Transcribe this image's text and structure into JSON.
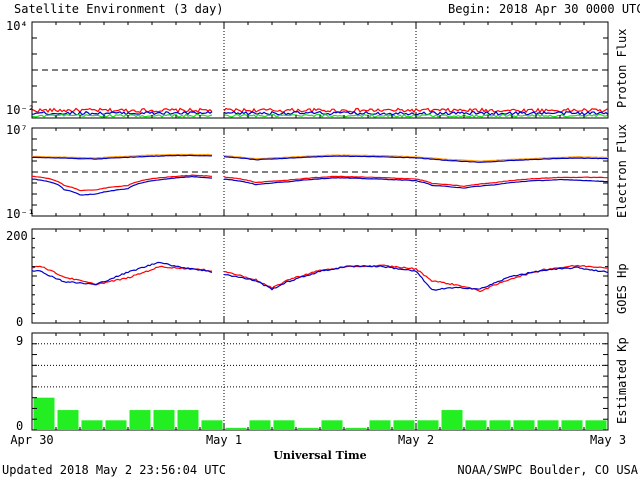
{
  "header": {
    "title": "Satellite Environment (3 day)",
    "begin_label": "Begin:",
    "begin_value": "2018 Apr 30 0000 UTC"
  },
  "footer": {
    "updated": "Updated 2018 May  2 23:56:04 UTC",
    "credit": "NOAA/SWPC Boulder, CO USA"
  },
  "x_axis": {
    "label": "Universal Time",
    "ticks": [
      "Apr 30",
      "May 1",
      "May 2",
      "May 3"
    ]
  },
  "colors": {
    "red": "#ff0000",
    "blue": "#0000cc",
    "green": "#22dd22",
    "orange": "#ff9900",
    "kp_bar": "#22ee22"
  },
  "chart_data": [
    {
      "type": "line",
      "panel": "proton",
      "ylabel": "Proton Flux",
      "yscale": "log",
      "ylim": [
        0.01,
        10000
      ],
      "ytick_labels": [
        "10⁴",
        "10⁻²"
      ],
      "reference_line": 10,
      "x_range_hours": [
        0,
        72
      ],
      "series": [
        {
          "color": "red",
          "level": 0.03,
          "noise": 0.12
        },
        {
          "color": "blue",
          "level": 0.02,
          "noise": 0.1
        },
        {
          "color": "green",
          "level": 0.014,
          "noise": 0.08
        }
      ]
    },
    {
      "type": "line",
      "panel": "electron",
      "ylabel": "Electron Flux",
      "yscale": "log",
      "ylim": [
        0.1,
        10000000
      ],
      "ytick_labels": [
        "10⁷",
        "10⁻¹"
      ],
      "reference_line": 1000,
      "x_range_hours": [
        0,
        72
      ],
      "series": [
        {
          "color": "orange",
          "x": [
            0,
            2,
            8,
            14,
            18,
            22,
            24,
            28,
            32,
            38,
            44,
            48,
            52,
            56,
            62,
            68,
            72
          ],
          "values": [
            26000,
            24000,
            19000,
            32000,
            40000,
            38000,
            30000,
            16000,
            22000,
            35000,
            30000,
            23000,
            14000,
            9500,
            16000,
            24000,
            21000
          ]
        },
        {
          "color": "blue",
          "x": [
            0,
            2,
            8,
            14,
            18,
            22,
            24,
            28,
            32,
            38,
            44,
            48,
            52,
            56,
            62,
            68,
            72
          ],
          "values": [
            22000,
            20000,
            15000,
            25000,
            32000,
            30000,
            24000,
            13000,
            18000,
            28000,
            24000,
            19000,
            11000,
            7500,
            13000,
            19000,
            16000
          ]
        },
        {
          "color": "red",
          "x": [
            0,
            2,
            4,
            6,
            8,
            12,
            16,
            20,
            24,
            28,
            32,
            38,
            44,
            48,
            50,
            54,
            58,
            62,
            66,
            70,
            72
          ],
          "values": [
            400,
            260,
            60,
            20,
            24,
            60,
            300,
            500,
            360,
            110,
            180,
            400,
            300,
            230,
            90,
            50,
            110,
            230,
            320,
            330,
            310
          ]
        },
        {
          "color": "blue",
          "x": [
            0,
            2,
            4,
            6,
            8,
            12,
            16,
            20,
            24,
            28,
            32,
            38,
            44,
            48,
            50,
            54,
            58,
            62,
            66,
            70,
            72
          ],
          "values": [
            230,
            140,
            25,
            8,
            10,
            30,
            200,
            380,
            230,
            70,
            130,
            300,
            220,
            160,
            60,
            35,
            70,
            150,
            200,
            160,
            130
          ]
        }
      ]
    },
    {
      "type": "line",
      "panel": "goes_hp",
      "ylabel": "GOES Hp",
      "ylim": [
        0,
        200
      ],
      "ytick_labels": [
        "200",
        "0"
      ],
      "x_range_hours": [
        0,
        72
      ],
      "series": [
        {
          "color": "red",
          "x": [
            0,
            1,
            4,
            8,
            12,
            16,
            20,
            22,
            24,
            28,
            30,
            32,
            36,
            40,
            44,
            48,
            50,
            54,
            56,
            60,
            64,
            68,
            72
          ],
          "values": [
            118,
            122,
            98,
            82,
            96,
            120,
            115,
            112,
            110,
            92,
            74,
            92,
            112,
            120,
            122,
            115,
            90,
            78,
            68,
            95,
            114,
            122,
            118
          ]
        },
        {
          "color": "blue",
          "x": [
            0,
            1,
            4,
            8,
            12,
            16,
            18,
            20,
            22,
            24,
            28,
            30,
            32,
            36,
            40,
            44,
            48,
            50,
            52,
            54,
            56,
            60,
            64,
            68,
            72
          ],
          "values": [
            112,
            110,
            88,
            82,
            108,
            130,
            120,
            116,
            110,
            104,
            90,
            72,
            88,
            110,
            122,
            120,
            110,
            70,
            74,
            75,
            72,
            100,
            112,
            118,
            108
          ]
        }
      ]
    },
    {
      "type": "bar",
      "panel": "kp",
      "ylabel": "Estimated Kp",
      "ylim": [
        0,
        9
      ],
      "ytick_labels": [
        "9",
        "0"
      ],
      "reference_lines": [
        4,
        6,
        8
      ],
      "x_range_hours": [
        0,
        72
      ],
      "values": [
        3,
        1.85,
        0.9,
        0.9,
        1.85,
        1.85,
        1.85,
        0.9,
        0.2,
        0.9,
        0.9,
        0.2,
        0.9,
        0.2,
        0.9,
        0.9,
        0.9,
        1.85,
        0.9,
        0.9,
        0.9,
        0.9,
        0.9,
        0.9
      ]
    }
  ]
}
